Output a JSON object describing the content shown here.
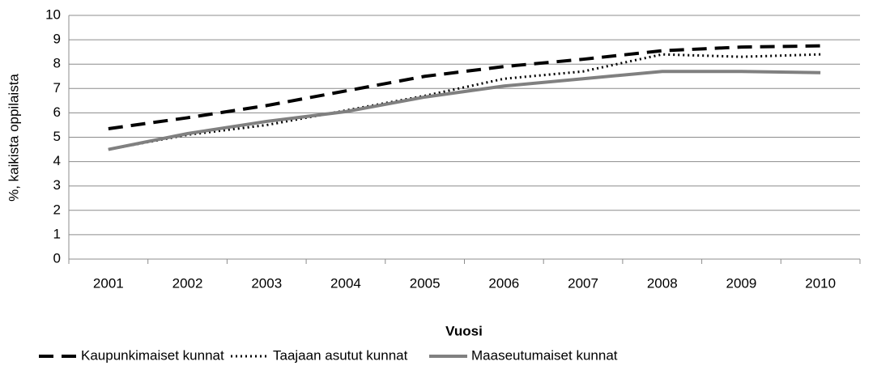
{
  "chart_data": {
    "type": "line",
    "y_label": "%, kaikista oppilaista",
    "x_label": "Vuosi",
    "categories": [
      "2001",
      "2002",
      "2003",
      "2004",
      "2005",
      "2006",
      "2007",
      "2008",
      "2009",
      "2010"
    ],
    "series": [
      {
        "name": "Kaupunkimaiset kunnat",
        "color": "#000000",
        "line_style": "dashed",
        "values": [
          5.35,
          5.8,
          6.3,
          6.9,
          7.5,
          7.9,
          8.2,
          8.55,
          8.7,
          8.75
        ]
      },
      {
        "name": "Taajaan asutut kunnat",
        "color": "#000000",
        "line_style": "dotted",
        "values": [
          4.5,
          5.1,
          5.5,
          6.1,
          6.7,
          7.4,
          7.7,
          8.4,
          8.3,
          8.4
        ]
      },
      {
        "name": "Maaseutumaiset kunnat",
        "color": "#808080",
        "line_style": "solid",
        "values": [
          4.5,
          5.15,
          5.65,
          6.05,
          6.65,
          7.1,
          7.4,
          7.7,
          7.7,
          7.65
        ]
      }
    ],
    "ylim": [
      0,
      10
    ],
    "yticks": [
      0,
      1,
      2,
      3,
      4,
      5,
      6,
      7,
      8,
      9,
      10
    ],
    "grid": true,
    "legend": "bottom"
  }
}
